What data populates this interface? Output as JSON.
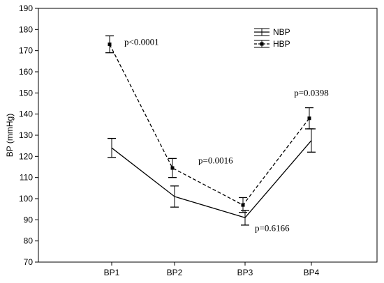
{
  "chart_data": {
    "type": "line",
    "title": "",
    "xlabel": "",
    "ylabel": "BP (mmHg)",
    "ylim": [
      70,
      190
    ],
    "yticks": [
      70,
      80,
      90,
      100,
      110,
      120,
      130,
      140,
      150,
      160,
      170,
      180,
      190
    ],
    "categories": [
      "BP1",
      "BP2",
      "BP3",
      "BP4"
    ],
    "grid": false,
    "legend_position": "top-right",
    "series": [
      {
        "name": "NBP",
        "line_style": "solid",
        "marker": "none",
        "values": [
          124,
          101,
          91,
          127.5
        ],
        "error": [
          4.5,
          5,
          3.5,
          5.5
        ]
      },
      {
        "name": "HBP",
        "line_style": "dashed",
        "marker": "square",
        "values": [
          173,
          114.5,
          97,
          138
        ],
        "error": [
          4,
          4.5,
          3.5,
          5
        ]
      }
    ],
    "annotations": [
      {
        "text": "p<0.0001",
        "category": "BP1",
        "y": 174
      },
      {
        "text": "p=0.0016",
        "category": "BP2",
        "y": 118
      },
      {
        "text": "p=0.6166",
        "category": "BP3",
        "y": 86
      },
      {
        "text": "p=0.0398",
        "category": "BP4",
        "y": 150
      }
    ]
  }
}
